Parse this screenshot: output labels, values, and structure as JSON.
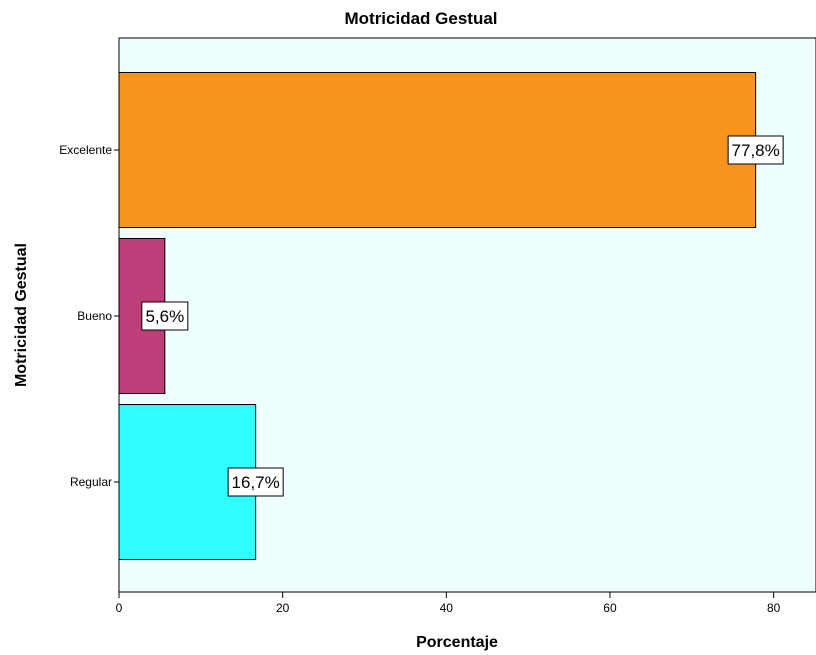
{
  "chart_data": {
    "type": "bar",
    "orientation": "horizontal",
    "title": "Motricidad Gestual",
    "xlabel": "Porcentaje",
    "ylabel": "Motricidad Gestual",
    "xlim": [
      0,
      83
    ],
    "x_ticks": [
      0,
      20,
      40,
      60,
      80
    ],
    "categories": [
      "Excelente",
      "Bueno",
      "Regular"
    ],
    "values": [
      77.8,
      5.6,
      16.7
    ],
    "data_labels": [
      "77,8%",
      "5,6%",
      "16,7%"
    ],
    "bar_colors": [
      "#f7941d",
      "#bc3f79",
      "#2efefe"
    ],
    "plot_background": "#effefe",
    "grid": false,
    "legend": "none"
  }
}
